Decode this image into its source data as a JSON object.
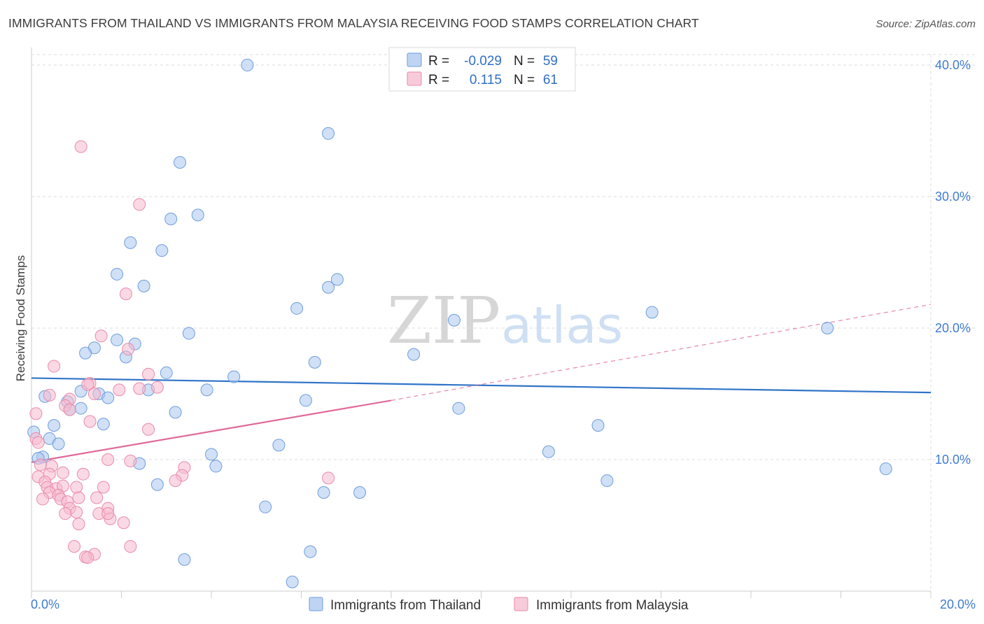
{
  "title": "IMMIGRANTS FROM THAILAND VS IMMIGRANTS FROM MALAYSIA RECEIVING FOOD STAMPS CORRELATION CHART",
  "source": "Source: ZipAtlas.com",
  "watermark": {
    "zip": "ZIP",
    "atlas": "atlas"
  },
  "colors": {
    "thailand_fill": "#a9c6ef",
    "thailand_stroke": "#6e9ede",
    "thailand_line": "#2f74c8",
    "malaysia_fill": "#f6b9cd",
    "malaysia_stroke": "#e98aaa",
    "malaysia_line": "#e0699a",
    "grid": "#dddddd",
    "tick_label": "#3f7bd1"
  },
  "stats_legend": {
    "rows": [
      {
        "r_label": "R =",
        "r_value": "-0.029",
        "n_label": "N =",
        "n_value": "59"
      },
      {
        "r_label": "R =",
        "r_value": "0.115",
        "n_label": "N =",
        "n_value": "61"
      }
    ]
  },
  "chart_data": {
    "type": "scatter",
    "title": "IMMIGRANTS FROM THAILAND VS IMMIGRANTS FROM MALAYSIA RECEIVING FOOD STAMPS CORRELATION CHART",
    "ylabel": "Receiving Food Stamps",
    "xlabel": "",
    "xlim": [
      0,
      20
    ],
    "ylim": [
      0,
      40.8
    ],
    "x_tick_labels": [
      {
        "value": 0,
        "label": "0.0%"
      },
      {
        "value": 20,
        "label": "20.0%"
      }
    ],
    "y_tick_labels": [
      {
        "value": 10,
        "label": "10.0%"
      },
      {
        "value": 20,
        "label": "20.0%"
      },
      {
        "value": 30,
        "label": "30.0%"
      },
      {
        "value": 40,
        "label": "40.0%"
      }
    ],
    "legend_position": "bottom-center",
    "series": [
      {
        "name": "Immigrants from Thailand",
        "R": -0.029,
        "N": 59,
        "trend": {
          "x0": 0,
          "y0": 16.2,
          "x1": 20,
          "y1": 15.1
        },
        "points": [
          [
            4.8,
            40.0
          ],
          [
            6.6,
            34.8
          ],
          [
            3.3,
            32.6
          ],
          [
            3.7,
            28.6
          ],
          [
            3.1,
            28.3
          ],
          [
            2.2,
            26.5
          ],
          [
            2.9,
            25.9
          ],
          [
            1.9,
            24.1
          ],
          [
            6.8,
            23.7
          ],
          [
            2.5,
            23.2
          ],
          [
            6.6,
            23.1
          ],
          [
            5.9,
            21.5
          ],
          [
            13.8,
            21.2
          ],
          [
            9.4,
            20.6
          ],
          [
            17.7,
            20.0
          ],
          [
            3.5,
            19.6
          ],
          [
            1.9,
            19.1
          ],
          [
            2.3,
            18.8
          ],
          [
            1.4,
            18.5
          ],
          [
            1.2,
            18.1
          ],
          [
            2.1,
            17.8
          ],
          [
            8.5,
            18.0
          ],
          [
            6.3,
            17.4
          ],
          [
            3.0,
            16.6
          ],
          [
            4.5,
            16.3
          ],
          [
            3.9,
            15.3
          ],
          [
            2.6,
            15.3
          ],
          [
            1.5,
            15.0
          ],
          [
            1.7,
            14.7
          ],
          [
            1.1,
            15.2
          ],
          [
            0.8,
            14.4
          ],
          [
            6.1,
            14.5
          ],
          [
            0.85,
            13.8
          ],
          [
            1.1,
            13.9
          ],
          [
            9.5,
            13.9
          ],
          [
            3.2,
            13.6
          ],
          [
            1.6,
            12.7
          ],
          [
            0.5,
            12.6
          ],
          [
            12.6,
            12.6
          ],
          [
            0.05,
            12.1
          ],
          [
            0.4,
            11.6
          ],
          [
            0.6,
            11.2
          ],
          [
            5.5,
            11.1
          ],
          [
            0.25,
            10.2
          ],
          [
            11.5,
            10.6
          ],
          [
            4.0,
            10.4
          ],
          [
            2.4,
            9.7
          ],
          [
            4.1,
            9.5
          ],
          [
            19.0,
            9.3
          ],
          [
            2.8,
            8.1
          ],
          [
            12.8,
            8.4
          ],
          [
            6.5,
            7.5
          ],
          [
            7.3,
            7.5
          ],
          [
            5.2,
            6.4
          ],
          [
            6.2,
            3.0
          ],
          [
            3.4,
            2.4
          ],
          [
            5.8,
            0.7
          ],
          [
            0.15,
            10.1
          ],
          [
            0.3,
            14.8
          ]
        ]
      },
      {
        "name": "Immigrants from Malaysia",
        "R": 0.115,
        "N": 61,
        "trend": {
          "x0": 0,
          "y0": 9.8,
          "x1": 8.0,
          "y1": 14.5
        },
        "trend_dashed": {
          "x0": 8.0,
          "y0": 14.5,
          "x1": 20,
          "y1": 21.8
        },
        "points": [
          [
            1.1,
            33.8
          ],
          [
            2.4,
            29.4
          ],
          [
            2.1,
            22.6
          ],
          [
            1.55,
            19.4
          ],
          [
            2.15,
            18.4
          ],
          [
            0.5,
            17.1
          ],
          [
            2.6,
            16.5
          ],
          [
            1.3,
            15.8
          ],
          [
            1.25,
            15.7
          ],
          [
            2.8,
            15.5
          ],
          [
            2.4,
            15.4
          ],
          [
            1.95,
            15.3
          ],
          [
            0.4,
            14.9
          ],
          [
            1.4,
            15.0
          ],
          [
            0.85,
            14.6
          ],
          [
            0.75,
            14.1
          ],
          [
            0.85,
            13.8
          ],
          [
            0.1,
            13.5
          ],
          [
            1.3,
            12.9
          ],
          [
            2.6,
            12.3
          ],
          [
            0.1,
            11.6
          ],
          [
            0.15,
            11.3
          ],
          [
            1.7,
            10.0
          ],
          [
            2.2,
            9.9
          ],
          [
            0.2,
            9.6
          ],
          [
            0.45,
            9.5
          ],
          [
            3.4,
            9.4
          ],
          [
            0.4,
            8.9
          ],
          [
            0.7,
            9.0
          ],
          [
            1.15,
            8.9
          ],
          [
            3.35,
            8.8
          ],
          [
            6.6,
            8.6
          ],
          [
            3.2,
            8.4
          ],
          [
            0.15,
            8.7
          ],
          [
            0.3,
            8.3
          ],
          [
            0.35,
            7.9
          ],
          [
            0.55,
            7.8
          ],
          [
            0.7,
            8.0
          ],
          [
            1.0,
            7.9
          ],
          [
            1.6,
            7.9
          ],
          [
            0.4,
            7.5
          ],
          [
            0.6,
            7.3
          ],
          [
            0.65,
            7.0
          ],
          [
            0.8,
            6.8
          ],
          [
            1.05,
            7.1
          ],
          [
            1.45,
            7.1
          ],
          [
            0.25,
            7.0
          ],
          [
            0.85,
            6.3
          ],
          [
            1.0,
            6.0
          ],
          [
            1.7,
            6.3
          ],
          [
            0.75,
            5.9
          ],
          [
            1.5,
            5.9
          ],
          [
            1.75,
            5.5
          ],
          [
            1.05,
            5.1
          ],
          [
            2.05,
            5.2
          ],
          [
            0.95,
            3.4
          ],
          [
            2.2,
            3.4
          ],
          [
            1.4,
            2.8
          ],
          [
            1.2,
            2.6
          ],
          [
            1.25,
            2.55
          ],
          [
            1.7,
            5.9
          ]
        ]
      }
    ]
  },
  "legend": {
    "thailand": "Immigrants from Thailand",
    "malaysia": "Immigrants from Malaysia"
  }
}
